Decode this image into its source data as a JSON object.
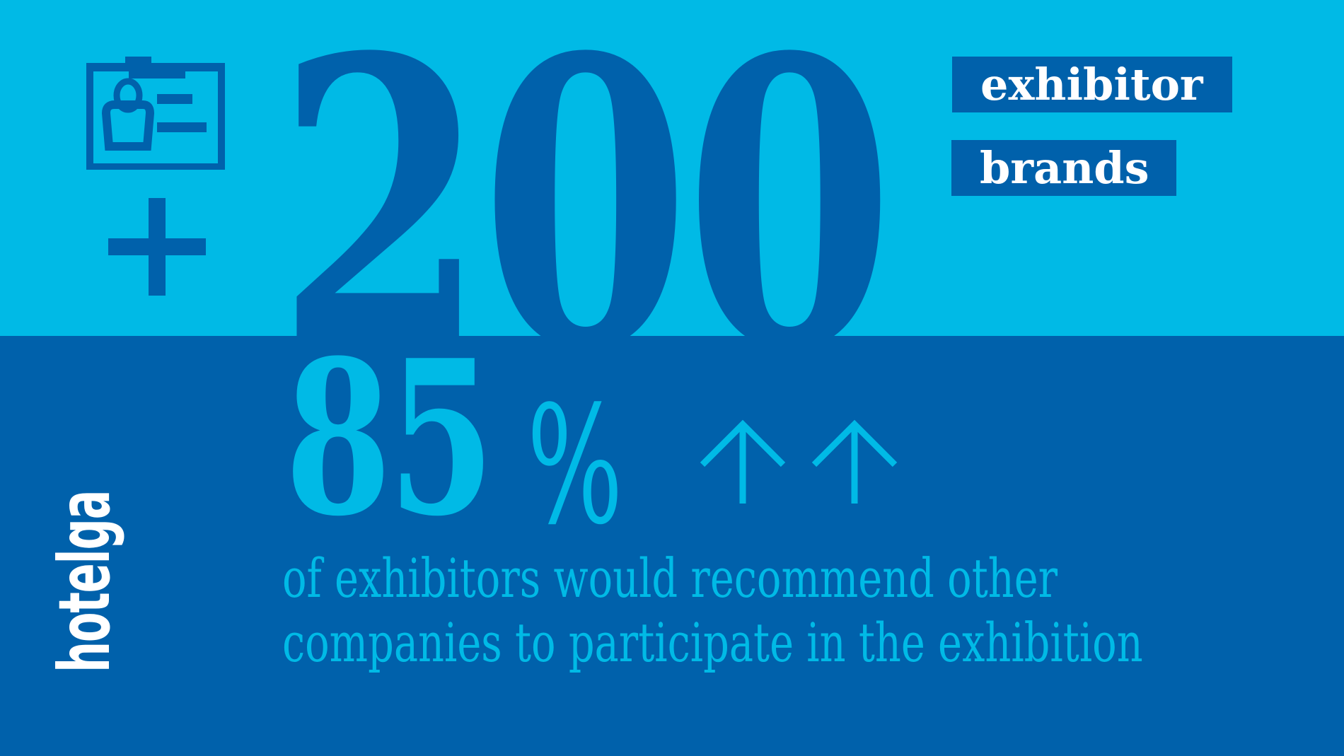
{
  "colors": {
    "light_blue": "#00bae6",
    "dark_blue": "#0061ab",
    "white": "#ffffff"
  },
  "top": {
    "icon": "id-badge-icon",
    "plus_icon": "plus-icon",
    "number": "200",
    "labels": [
      "exhibitor",
      "brands"
    ]
  },
  "bottom": {
    "percent_value": "85",
    "percent_sign": "%",
    "arrow_icons": [
      "arrow-up-icon",
      "arrow-up-icon"
    ],
    "description_lines": [
      "of exhibitors would recommend other",
      "companies to participate in the exhibition"
    ]
  },
  "logo": {
    "text": "hotelga"
  }
}
